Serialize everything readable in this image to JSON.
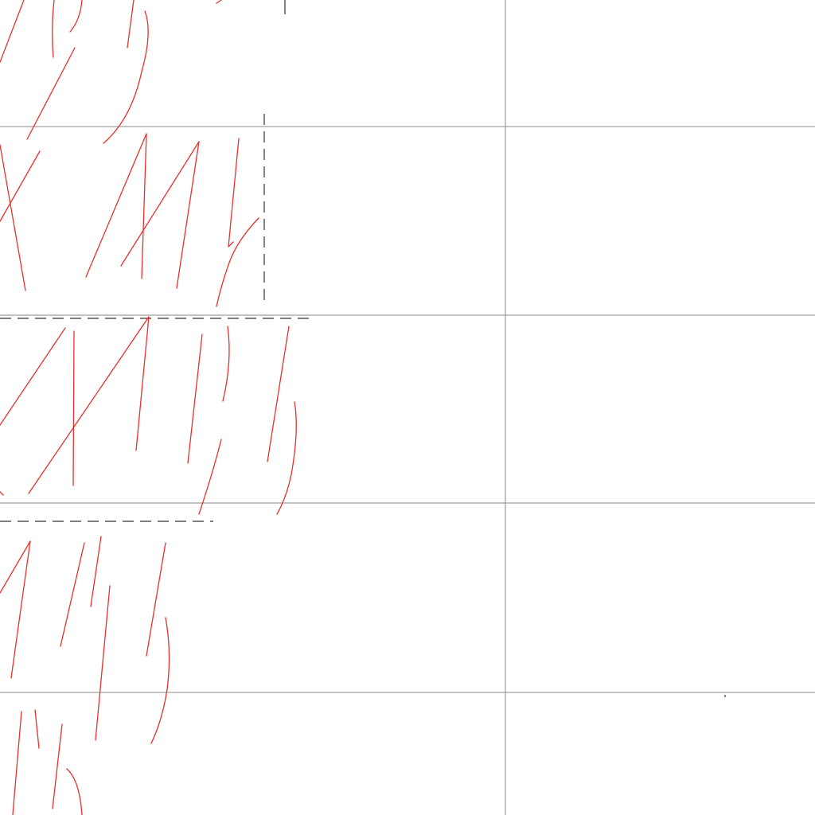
{
  "canvas": {
    "background_color": "#ffffff",
    "grid_line_color": "#8a8a8a",
    "guide_color": "#333333",
    "ink_color": "#e8302a",
    "column_count": 2,
    "row_count": 5
  },
  "strokes": {
    "count": 52,
    "tool": "pen"
  }
}
